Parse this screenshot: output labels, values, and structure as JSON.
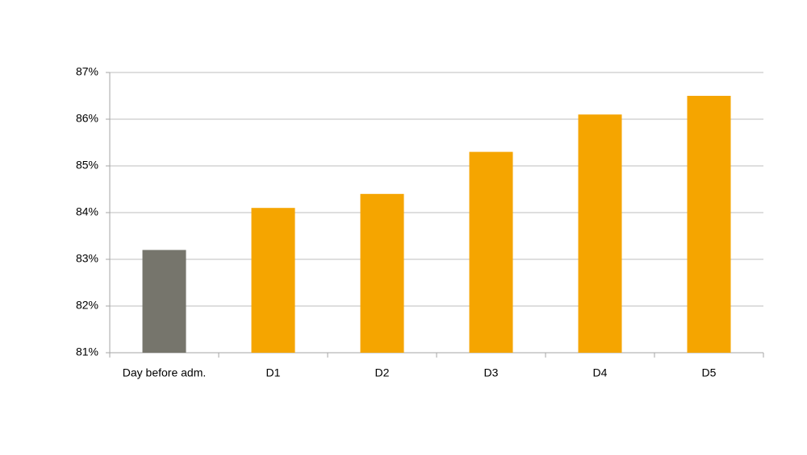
{
  "chart_data": {
    "type": "bar",
    "categories": [
      "Day before adm.",
      "D1",
      "D2",
      "D3",
      "D4",
      "D5"
    ],
    "values": [
      83.2,
      84.1,
      84.4,
      85.3,
      86.1,
      86.5
    ],
    "colors": [
      "#76756c",
      "#f5a500",
      "#f5a500",
      "#f5a500",
      "#f5a500",
      "#f5a500"
    ],
    "ylim": [
      81,
      87
    ],
    "yticks": [
      {
        "value": 81,
        "label": "81%"
      },
      {
        "value": 82,
        "label": "82%"
      },
      {
        "value": 83,
        "label": "83%"
      },
      {
        "value": 84,
        "label": "84%"
      },
      {
        "value": 85,
        "label": "85%"
      },
      {
        "value": 86,
        "label": "86%"
      },
      {
        "value": 87,
        "label": "87%"
      }
    ],
    "grid": true
  }
}
